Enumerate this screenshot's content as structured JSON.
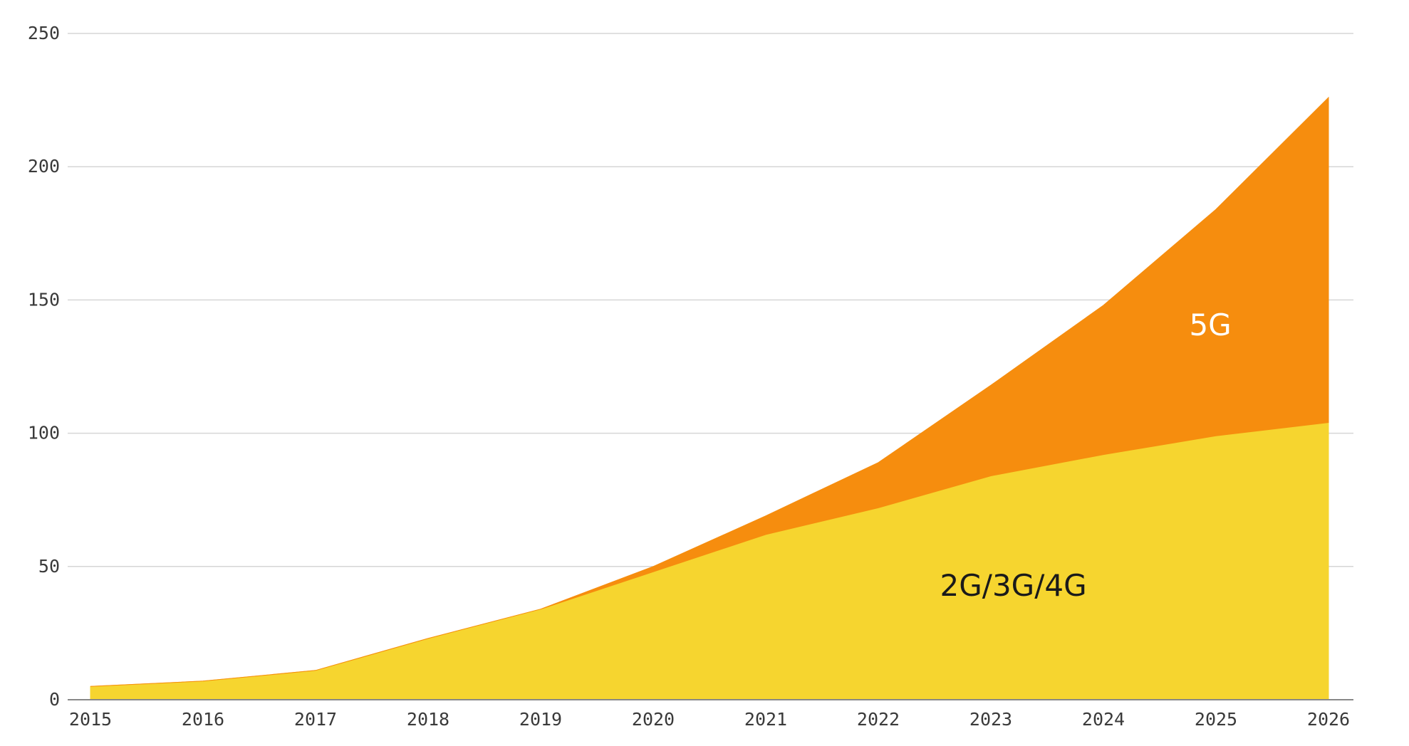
{
  "chart_data": {
    "type": "area",
    "stacked": true,
    "title": "",
    "xlabel": "",
    "ylabel": "",
    "x": [
      "2015",
      "2016",
      "2017",
      "2018",
      "2019",
      "2020",
      "2021",
      "2022",
      "2023",
      "2024",
      "2025",
      "2026"
    ],
    "ylim": [
      0,
      250
    ],
    "yticks": [
      0,
      50,
      100,
      150,
      200,
      250
    ],
    "grid": true,
    "legend": "none",
    "series": [
      {
        "name": "2G/3G/4G",
        "color": "#F6D52F",
        "label_color": "#1a1a1a",
        "values": [
          5,
          7,
          11,
          23,
          34,
          48,
          62,
          72,
          84,
          92,
          99,
          104
        ]
      },
      {
        "name": "5G",
        "color": "#F68D0E",
        "label_color": "#ffffff",
        "values": [
          0,
          0,
          0,
          0,
          0,
          2,
          7,
          17,
          34,
          56,
          85,
          122
        ]
      }
    ]
  }
}
